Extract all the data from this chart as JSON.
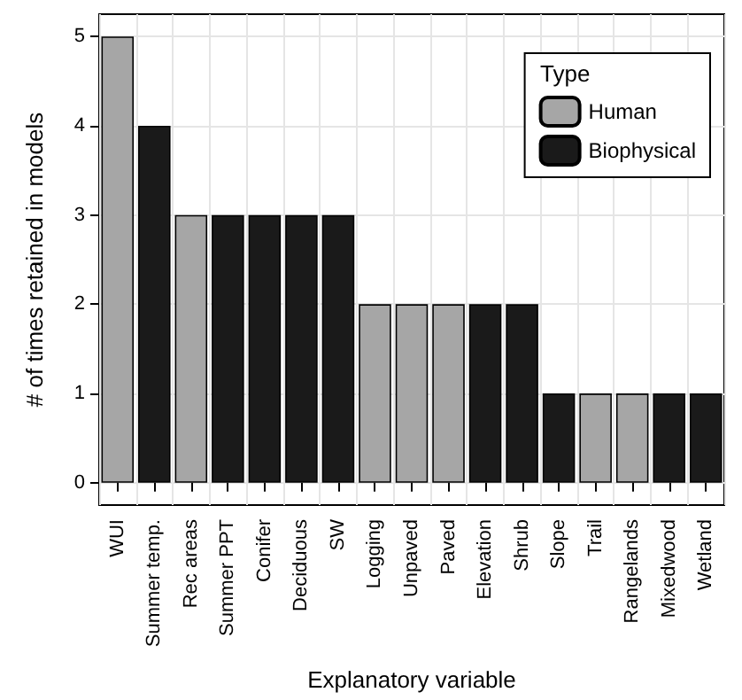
{
  "chart_data": {
    "type": "bar",
    "xlabel": "Explanatory variable",
    "ylabel": "# of times retained in models",
    "legend_title": "Type",
    "categories": [
      "WUI",
      "Summer temp.",
      "Rec areas",
      "Summer PPT",
      "Conifer",
      "Deciduous",
      "SW",
      "Logging",
      "Unpaved",
      "Paved",
      "Elevation",
      "Shrub",
      "Slope",
      "Trail",
      "Rangelands",
      "Mixedwood",
      "Wetland"
    ],
    "series": [
      {
        "name": "Human",
        "color": "#a6a6a6",
        "values": [
          5,
          null,
          3,
          null,
          null,
          null,
          null,
          2,
          2,
          2,
          null,
          null,
          null,
          1,
          1,
          null,
          null
        ]
      },
      {
        "name": "Biophysical",
        "color": "#1a1a1a",
        "values": [
          null,
          4,
          null,
          3,
          3,
          3,
          3,
          null,
          null,
          null,
          2,
          2,
          1,
          null,
          null,
          1,
          1
        ]
      }
    ],
    "stacked": true,
    "ylim": [
      -0.25,
      5.25
    ],
    "yticks": [
      0,
      1,
      2,
      3,
      4,
      5
    ],
    "grid": true,
    "legend": "top right"
  }
}
